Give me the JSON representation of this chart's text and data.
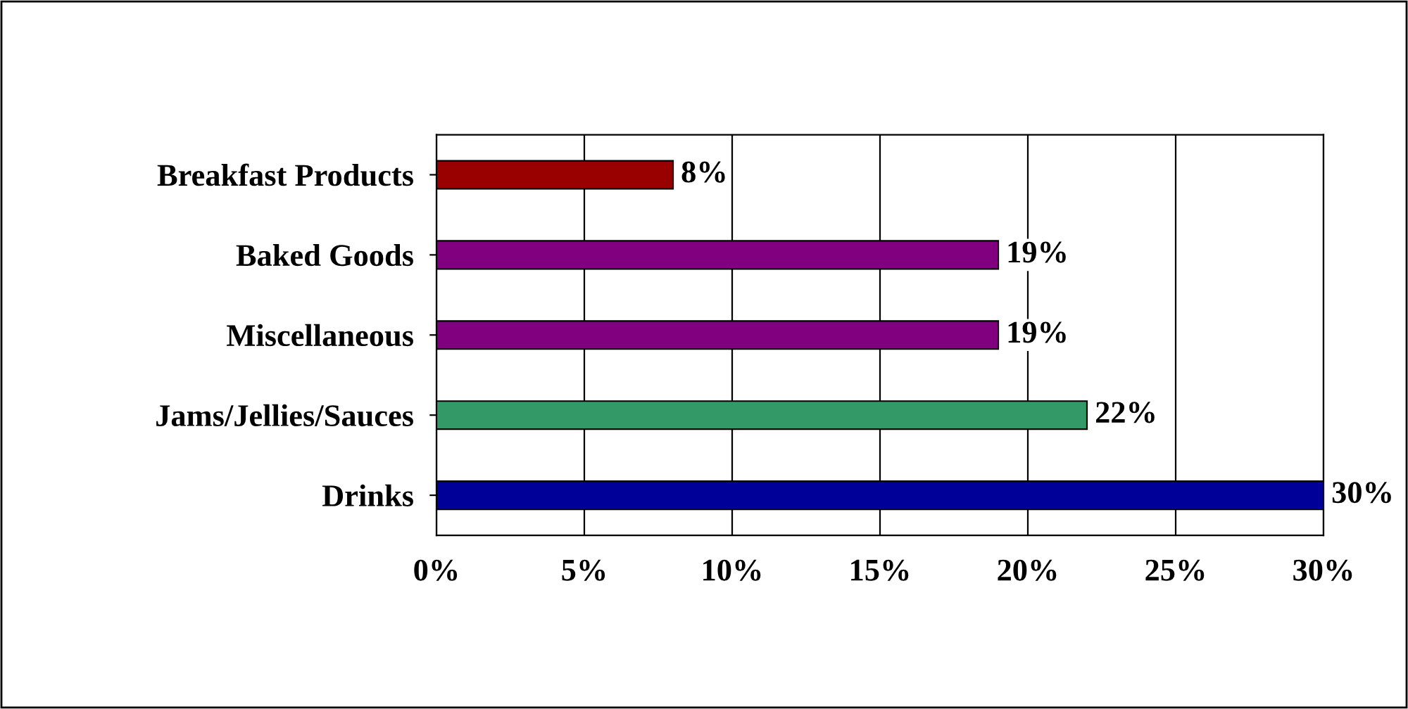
{
  "chart_data": {
    "type": "bar",
    "orientation": "horizontal",
    "categories": [
      "Breakfast Products",
      "Baked Goods",
      "Miscellaneous",
      "Jams/Jellies/Sauces",
      "Drinks"
    ],
    "values": [
      8,
      19,
      19,
      22,
      30
    ],
    "colors": [
      "#990000",
      "#800080",
      "#800080",
      "#339966",
      "#000099"
    ],
    "value_labels": [
      "8%",
      "19%",
      "19%",
      "22%",
      "30%"
    ],
    "xlim": [
      0,
      30
    ],
    "xticks": [
      {
        "value": 0,
        "label": "0%"
      },
      {
        "value": 5,
        "label": "5%"
      },
      {
        "value": 10,
        "label": "10%"
      },
      {
        "value": 15,
        "label": "15%"
      },
      {
        "value": 20,
        "label": "20%"
      },
      {
        "value": 25,
        "label": "25%"
      },
      {
        "value": 30,
        "label": "30%"
      }
    ],
    "grid": "x"
  }
}
